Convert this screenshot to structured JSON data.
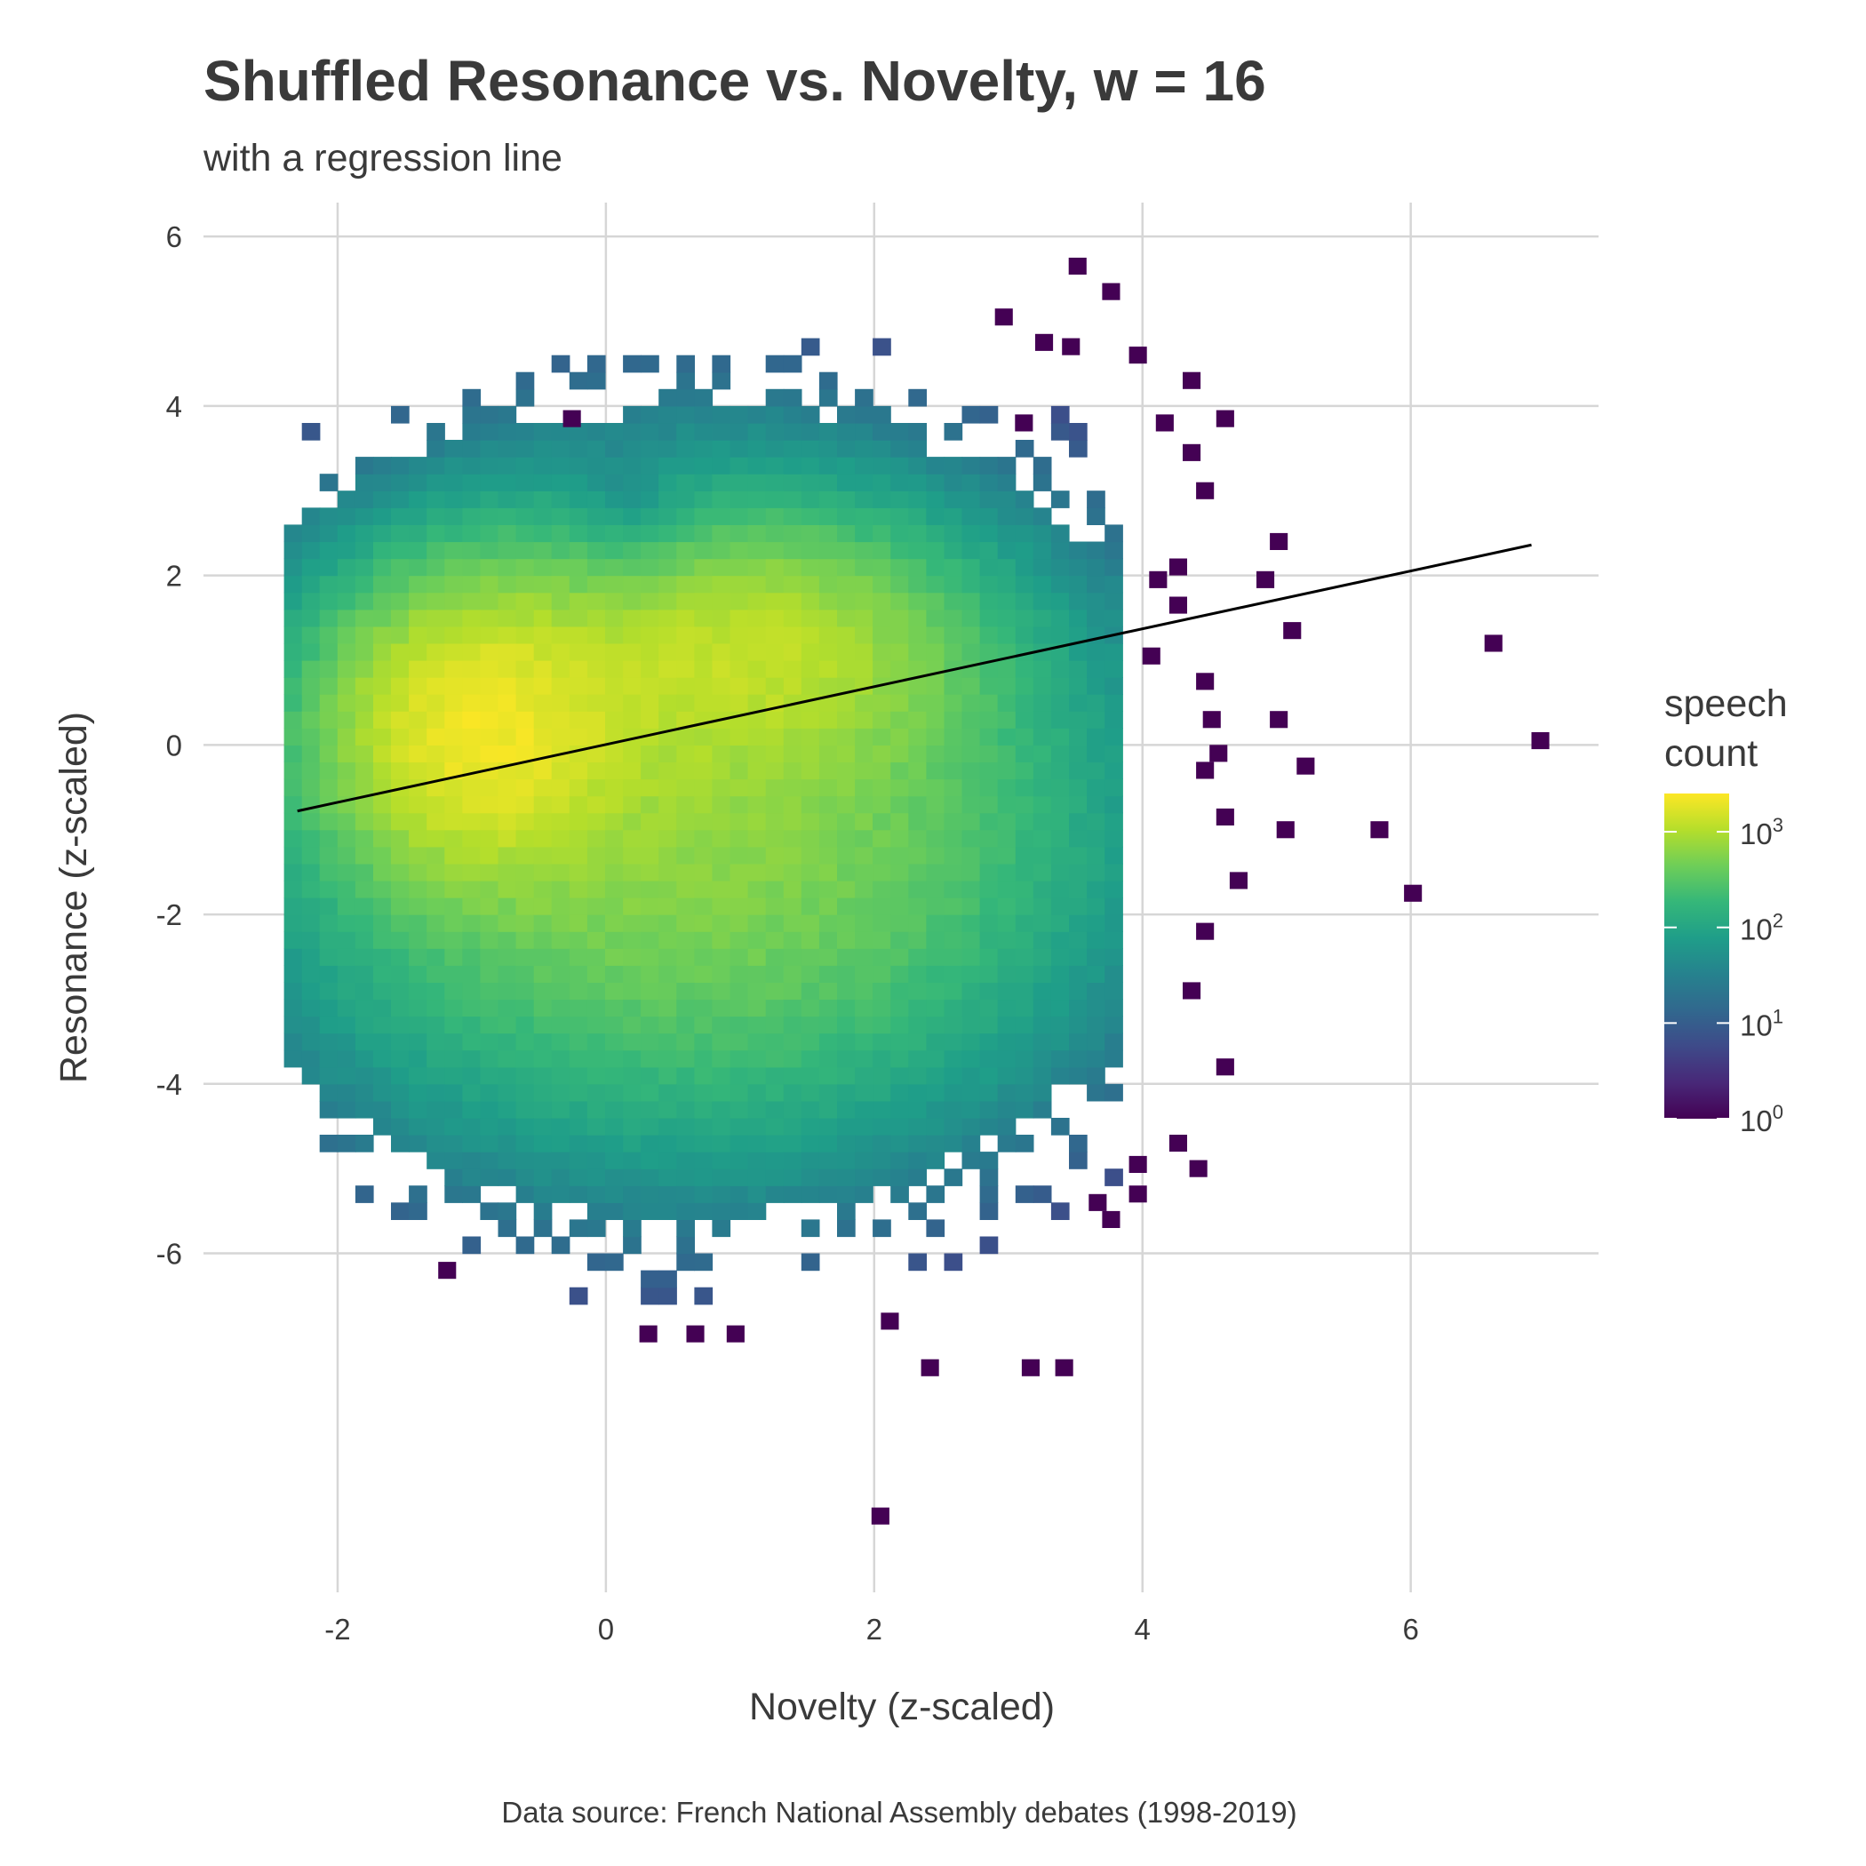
{
  "chart_data": {
    "type": "heatmap",
    "title": "Shuffled Resonance vs. Novelty, w = 16",
    "subtitle": "with a regression line",
    "xlabel": "Novelty (z-scaled)",
    "ylabel": "Resonance (z-scaled)",
    "caption": "Data source: French National Assembly debates (1998-2019)",
    "xlim": [
      -3.0,
      7.4
    ],
    "ylim": [
      -10.0,
      6.4
    ],
    "x_ticks": [
      -2,
      0,
      2,
      4,
      6
    ],
    "y_ticks": [
      -6,
      -4,
      -2,
      0,
      2,
      4,
      6
    ],
    "x_tick_labels": [
      "-2",
      "0",
      "2",
      "4",
      "6"
    ],
    "y_tick_labels": [
      "-6",
      "-4",
      "-2",
      "0",
      "2",
      "4",
      "6"
    ],
    "grid": true,
    "legend": {
      "title_lines": [
        "speech",
        "count"
      ],
      "scale": "log10",
      "colormap": "viridis",
      "range_log10": [
        0,
        3.4
      ],
      "ticks": [
        {
          "exp": 0,
          "base": "10",
          "sup": "0"
        },
        {
          "exp": 1,
          "base": "10",
          "sup": "1"
        },
        {
          "exp": 2,
          "base": "10",
          "sup": "2"
        },
        {
          "exp": 3,
          "base": "10",
          "sup": "3"
        }
      ],
      "placement": "right"
    },
    "bin_width": [
      0.133,
      0.2
    ],
    "density_model": {
      "description": "bimodal 2D density of speech counts",
      "modes": [
        {
          "x": -1.0,
          "y": 0.1,
          "peak_count": 2500
        },
        {
          "x": 1.0,
          "y": 1.0,
          "peak_count": 800
        }
      ],
      "max_count": 2500
    },
    "outlier_points": [
      [
        3.45,
        5.55
      ],
      [
        3.7,
        5.25
      ],
      [
        2.9,
        4.95
      ],
      [
        3.2,
        4.65
      ],
      [
        3.4,
        4.6
      ],
      [
        3.9,
        4.5
      ],
      [
        4.3,
        4.2
      ],
      [
        4.55,
        3.75
      ],
      [
        3.05,
        3.7
      ],
      [
        -0.32,
        3.75
      ],
      [
        4.1,
        3.7
      ],
      [
        4.3,
        3.35
      ],
      [
        4.4,
        2.9
      ],
      [
        4.95,
        2.3
      ],
      [
        4.2,
        2.0
      ],
      [
        4.05,
        1.85
      ],
      [
        4.85,
        1.85
      ],
      [
        4.2,
        1.55
      ],
      [
        5.05,
        1.25
      ],
      [
        6.55,
        1.1
      ],
      [
        4.0,
        0.95
      ],
      [
        4.4,
        0.65
      ],
      [
        4.45,
        0.2
      ],
      [
        4.95,
        0.2
      ],
      [
        4.5,
        -0.2
      ],
      [
        6.9,
        -0.05
      ],
      [
        5.15,
        -0.35
      ],
      [
        4.4,
        -0.4
      ],
      [
        4.55,
        -0.95
      ],
      [
        5.0,
        -1.1
      ],
      [
        5.7,
        -1.1
      ],
      [
        4.65,
        -1.7
      ],
      [
        5.95,
        -1.85
      ],
      [
        4.4,
        -2.3
      ],
      [
        4.3,
        -3.0
      ],
      [
        4.55,
        -3.9
      ],
      [
        4.2,
        -4.8
      ],
      [
        4.35,
        -5.1
      ],
      [
        3.9,
        -5.05
      ],
      [
        3.9,
        -5.4
      ],
      [
        3.6,
        -5.5
      ],
      [
        3.7,
        -5.7
      ],
      [
        -1.25,
        -6.3
      ],
      [
        2.05,
        -6.9
      ],
      [
        2.35,
        -7.45
      ],
      [
        3.1,
        -7.45
      ],
      [
        3.35,
        -7.45
      ],
      [
        1.98,
        -9.2
      ],
      [
        0.25,
        -7.05
      ],
      [
        0.6,
        -7.05
      ],
      [
        0.9,
        -7.05
      ]
    ],
    "regression_line": {
      "x": [
        -2.3,
        6.9
      ],
      "y": [
        -0.78,
        2.36
      ]
    }
  }
}
